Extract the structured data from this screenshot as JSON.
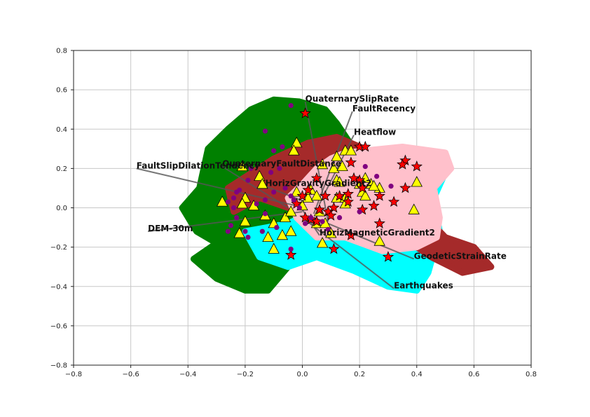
{
  "chart_data": {
    "type": "scatter",
    "title": "",
    "xlabel": "",
    "ylabel": "",
    "xlim": [
      -0.8,
      0.8
    ],
    "ylim": [
      -0.8,
      0.8
    ],
    "grid": true,
    "legend": "none",
    "x_ticks": [
      "−0.8",
      "−0.6",
      "−0.4",
      "−0.2",
      "0.0",
      "0.2",
      "0.4",
      "0.6",
      "0.8"
    ],
    "y_ticks": [
      "0.8",
      "0.6",
      "0.4",
      "0.2",
      "0.0",
      "−0.2",
      "−0.4",
      "−0.6",
      "−0.8"
    ],
    "clusters": [
      {
        "color": "#008000",
        "polygon": [
          [
            -0.01,
            0.54
          ],
          [
            0.08,
            0.5
          ],
          [
            0.12,
            0.43
          ],
          [
            0.18,
            0.3
          ],
          [
            0.1,
            0.15
          ],
          [
            0.0,
            0.05
          ],
          [
            -0.05,
            -0.12
          ],
          [
            -0.12,
            -0.25
          ],
          [
            -0.05,
            -0.3
          ],
          [
            -0.12,
            -0.42
          ],
          [
            -0.2,
            -0.42
          ],
          [
            -0.3,
            -0.36
          ],
          [
            -0.38,
            -0.26
          ],
          [
            -0.3,
            -0.18
          ],
          [
            -0.37,
            -0.12
          ],
          [
            -0.42,
            0.0
          ],
          [
            -0.36,
            0.1
          ],
          [
            -0.33,
            0.3
          ],
          [
            -0.26,
            0.4
          ],
          [
            -0.18,
            0.5
          ],
          [
            -0.1,
            0.55
          ]
        ]
      },
      {
        "color": "#00ffff",
        "polygon": [
          [
            0.22,
            0.16
          ],
          [
            0.42,
            0.16
          ],
          [
            0.5,
            0.18
          ],
          [
            0.46,
            0.05
          ],
          [
            0.48,
            -0.12
          ],
          [
            0.44,
            -0.33
          ],
          [
            0.4,
            -0.42
          ],
          [
            0.3,
            -0.4
          ],
          [
            0.18,
            -0.32
          ],
          [
            0.05,
            -0.25
          ],
          [
            -0.05,
            -0.3
          ],
          [
            -0.15,
            -0.25
          ],
          [
            -0.2,
            -0.12
          ],
          [
            -0.05,
            -0.08
          ],
          [
            0.1,
            0.02
          ]
        ]
      },
      {
        "color": "#a52a2a",
        "polygon": [
          [
            0.02,
            0.33
          ],
          [
            0.12,
            0.36
          ],
          [
            0.25,
            0.28
          ],
          [
            0.3,
            0.14
          ],
          [
            0.4,
            0.0
          ],
          [
            0.5,
            -0.15
          ],
          [
            0.6,
            -0.2
          ],
          [
            0.66,
            -0.3
          ],
          [
            0.56,
            -0.33
          ],
          [
            0.45,
            -0.25
          ],
          [
            0.3,
            -0.1
          ],
          [
            0.2,
            -0.05
          ],
          [
            0.1,
            0.02
          ],
          [
            -0.05,
            0.0
          ],
          [
            -0.15,
            0.05
          ],
          [
            -0.24,
            -0.02
          ],
          [
            -0.26,
            0.1
          ],
          [
            -0.1,
            0.25
          ]
        ]
      },
      {
        "color": "#ffc0cb",
        "polygon": [
          [
            0.15,
            0.28
          ],
          [
            0.35,
            0.31
          ],
          [
            0.5,
            0.28
          ],
          [
            0.52,
            0.2
          ],
          [
            0.46,
            0.1
          ],
          [
            0.48,
            -0.05
          ],
          [
            0.47,
            -0.15
          ],
          [
            0.4,
            -0.2
          ],
          [
            0.28,
            -0.22
          ],
          [
            0.15,
            -0.15
          ],
          [
            0.05,
            -0.15
          ],
          [
            -0.02,
            -0.05
          ],
          [
            -0.05,
            0.05
          ],
          [
            0.0,
            0.12
          ],
          [
            0.05,
            0.2
          ],
          [
            0.1,
            0.25
          ]
        ]
      }
    ],
    "series": [
      {
        "marker": "triangle",
        "color": "#ffff00",
        "points": [
          [
            -0.02,
            0.33
          ],
          [
            -0.03,
            0.29
          ],
          [
            -0.28,
            0.03
          ],
          [
            -0.21,
            0.21
          ],
          [
            -0.15,
            0.16
          ],
          [
            -0.14,
            0.12
          ],
          [
            -0.2,
            0.05
          ],
          [
            -0.21,
            0.02
          ],
          [
            -0.17,
            0.01
          ],
          [
            -0.13,
            -0.04
          ],
          [
            -0.2,
            -0.07
          ],
          [
            -0.22,
            -0.13
          ],
          [
            -0.12,
            -0.15
          ],
          [
            -0.1,
            -0.08
          ],
          [
            -0.06,
            -0.05
          ],
          [
            -0.07,
            -0.14
          ],
          [
            -0.04,
            -0.12
          ],
          [
            -0.1,
            -0.21
          ],
          [
            -0.04,
            -0.02
          ],
          [
            -0.02,
            0.08
          ],
          [
            0.0,
            0.01
          ],
          [
            0.02,
            0.05
          ],
          [
            0.03,
            0.09
          ],
          [
            0.05,
            0.06
          ],
          [
            0.06,
            -0.02
          ],
          [
            0.07,
            0.22
          ],
          [
            0.11,
            0.2
          ],
          [
            0.12,
            0.26
          ],
          [
            0.14,
            0.21
          ],
          [
            0.15,
            0.29
          ],
          [
            0.17,
            0.29
          ],
          [
            0.12,
            0.14
          ],
          [
            0.13,
            0.13
          ],
          [
            0.12,
            0.05
          ],
          [
            0.15,
            0.05
          ],
          [
            0.15,
            0.02
          ],
          [
            0.05,
            -0.08
          ],
          [
            0.08,
            -0.08
          ],
          [
            0.1,
            -0.13
          ],
          [
            0.07,
            -0.18
          ],
          [
            0.2,
            0.12
          ],
          [
            0.22,
            0.15
          ],
          [
            0.21,
            0.08
          ],
          [
            0.24,
            0.12
          ],
          [
            0.22,
            0.06
          ],
          [
            0.27,
            0.1
          ],
          [
            0.25,
            0.11
          ],
          [
            0.4,
            0.13
          ],
          [
            0.39,
            -0.01
          ],
          [
            0.27,
            -0.17
          ]
        ]
      },
      {
        "marker": "star",
        "color": "#ff0000",
        "points": [
          [
            0.01,
            0.48
          ],
          [
            0.2,
            0.31
          ],
          [
            0.22,
            0.31
          ],
          [
            0.36,
            0.24
          ],
          [
            0.35,
            0.22
          ],
          [
            0.4,
            0.21
          ],
          [
            0.17,
            0.23
          ],
          [
            0.2,
            0.14
          ],
          [
            0.16,
            0.07
          ],
          [
            0.18,
            0.15
          ],
          [
            0.21,
            0.1
          ],
          [
            0.27,
            0.06
          ],
          [
            0.32,
            0.03
          ],
          [
            0.36,
            0.1
          ],
          [
            0.25,
            0.01
          ],
          [
            0.21,
            -0.01
          ],
          [
            0.16,
            0.03
          ],
          [
            0.13,
            0.06
          ],
          [
            0.11,
            0.0
          ],
          [
            0.09,
            -0.02
          ],
          [
            0.06,
            -0.01
          ],
          [
            0.1,
            -0.04
          ],
          [
            0.03,
            -0.06
          ],
          [
            0.01,
            -0.05
          ],
          [
            0.05,
            -0.07
          ],
          [
            0.17,
            -0.14
          ],
          [
            0.27,
            -0.08
          ],
          [
            0.11,
            -0.21
          ],
          [
            0.3,
            -0.25
          ],
          [
            -0.04,
            -0.24
          ],
          [
            0.05,
            0.15
          ],
          [
            -0.02,
            0.02
          ],
          [
            0.0,
            0.06
          ],
          [
            0.02,
            0.09
          ],
          [
            0.08,
            0.06
          ]
        ]
      },
      {
        "marker": "circle",
        "color": "#800080",
        "points": [
          [
            -0.04,
            0.52
          ],
          [
            -0.13,
            0.39
          ],
          [
            -0.07,
            0.31
          ],
          [
            -0.1,
            0.29
          ],
          [
            -0.08,
            0.2
          ],
          [
            -0.11,
            0.18
          ],
          [
            -0.18,
            0.2
          ],
          [
            -0.19,
            0.14
          ],
          [
            -0.22,
            0.09
          ],
          [
            -0.23,
            0.08
          ],
          [
            -0.24,
            0.05
          ],
          [
            -0.26,
            0.03
          ],
          [
            -0.24,
            0.0
          ],
          [
            -0.23,
            -0.05
          ],
          [
            -0.25,
            -0.09
          ],
          [
            -0.26,
            -0.12
          ],
          [
            -0.2,
            -0.12
          ],
          [
            -0.19,
            -0.15
          ],
          [
            -0.14,
            -0.12
          ],
          [
            -0.13,
            -0.03
          ],
          [
            -0.16,
            0.02
          ],
          [
            -0.13,
            0.04
          ],
          [
            -0.1,
            0.08
          ],
          [
            -0.06,
            0.1
          ],
          [
            -0.04,
            0.06
          ],
          [
            -0.03,
            0.04
          ],
          [
            -0.01,
            0.0
          ],
          [
            0.01,
            -0.08
          ],
          [
            0.03,
            -0.05
          ],
          [
            0.07,
            -0.07
          ],
          [
            0.09,
            -0.11
          ],
          [
            0.13,
            -0.05
          ],
          [
            0.2,
            -0.02
          ],
          [
            -0.04,
            -0.21
          ],
          [
            0.31,
            0.11
          ],
          [
            0.26,
            0.16
          ],
          [
            0.22,
            0.21
          ],
          [
            -0.09,
            -0.1
          ]
        ]
      }
    ],
    "annotations": [
      {
        "text": "QuaternarySlipRate",
        "x": 0.01,
        "y": 0.54,
        "tx": 0.09,
        "ty": -0.07
      },
      {
        "text": "FaultRecency",
        "x": 0.175,
        "y": 0.49,
        "tx": 0.04,
        "ty": -0.03
      },
      {
        "text": "Heatflow",
        "x": 0.18,
        "y": 0.37,
        "tx": 0.06,
        "ty": 0.02
      },
      {
        "text": "QuaternaryFaultDistance",
        "x": -0.28,
        "y": 0.21,
        "tx": -0.05,
        "ty": 0.0
      },
      {
        "text": "FaultSlipDilationTendency",
        "x": -0.58,
        "y": 0.2,
        "tx": -0.02,
        "ty": 0.01
      },
      {
        "text": "HorizGravityGradient2",
        "x": -0.13,
        "y": 0.11,
        "tx": 0.01,
        "ty": 0.03
      },
      {
        "text": "DEM-30m",
        "x": -0.54,
        "y": -0.12,
        "tx": 0.0,
        "ty": -0.02
      },
      {
        "text": "HorizMagneticGradient2",
        "x": 0.06,
        "y": -0.14,
        "tx": 0.0,
        "ty": -0.01
      },
      {
        "text": "GeodeticStrainRate",
        "x": 0.39,
        "y": -0.26,
        "tx": 0.04,
        "ty": -0.05
      },
      {
        "text": "Earthquakes",
        "x": 0.32,
        "y": -0.41,
        "tx": 0.0,
        "ty": -0.05
      }
    ]
  }
}
